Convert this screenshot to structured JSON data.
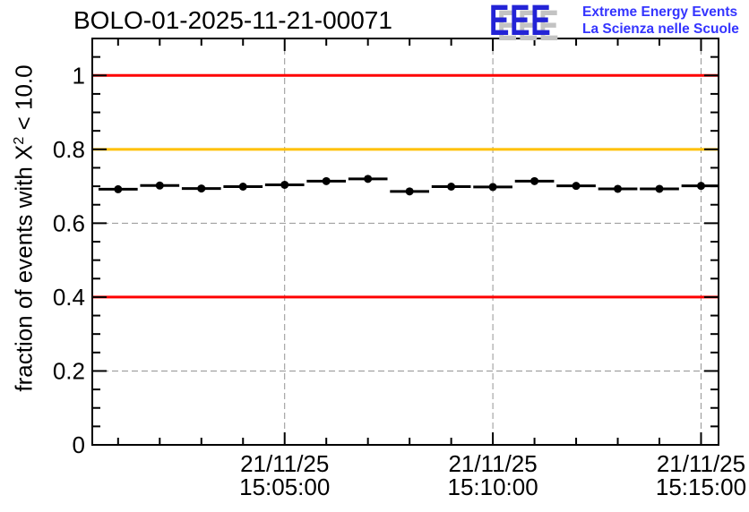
{
  "header": {
    "title": "BOLO-01-2025-11-21-00071",
    "logo": {
      "acronym": "EEE",
      "line1": "Extreme Energy Events",
      "line2": "La Scienza nelle Scuole",
      "acronym_color": "#2323d6",
      "shadow_color": "#c3c3c3",
      "text_color": "#3434ff"
    }
  },
  "chart_data": {
    "type": "scatter",
    "title": "BOLO-01-2025-11-21-00071",
    "ylabel": "fraction of events with X² < 10.0",
    "ylabel_parts": {
      "pre": "fraction of events with X",
      "sup": "2",
      "post": " < 10.0"
    },
    "xlabel": "",
    "grid": true,
    "grid_color": "#949494",
    "frame_color": "#000000",
    "ylim": [
      0,
      1.1
    ],
    "xlim_minutes": [
      0.38,
      15.42
    ],
    "y_major_ticks": [
      0,
      0.2,
      0.4,
      0.6,
      0.8,
      1.0
    ],
    "y_tick_labels": [
      "0",
      "0.2",
      "0.4",
      "0.6",
      "0.8",
      "1"
    ],
    "y_minor_step": 0.05,
    "x_major_ticks_minutes": [
      5,
      10,
      15
    ],
    "x_tick_labels": [
      {
        "date": "21/11/25",
        "time": "15:05:00"
      },
      {
        "date": "21/11/25",
        "time": "15:10:00"
      },
      {
        "date": "21/11/25",
        "time": "15:15:00"
      }
    ],
    "x_minor_step_minutes": 1,
    "reference_lines": [
      {
        "y": 1.0,
        "color": "#fe0000"
      },
      {
        "y": 0.8,
        "color": "#ffc000"
      },
      {
        "y": 0.4,
        "color": "#fe0000"
      }
    ],
    "series": [
      {
        "name": "chi2-fraction",
        "marker": "filled-circle",
        "color": "#000000",
        "bin_half_width_minutes": 0.47,
        "points": [
          {
            "time": "15:01",
            "minute": 1,
            "value": 0.692
          },
          {
            "time": "15:02",
            "minute": 2,
            "value": 0.702
          },
          {
            "time": "15:03",
            "minute": 3,
            "value": 0.694
          },
          {
            "time": "15:04",
            "minute": 4,
            "value": 0.699
          },
          {
            "time": "15:05",
            "minute": 5,
            "value": 0.704
          },
          {
            "time": "15:06",
            "minute": 6,
            "value": 0.714
          },
          {
            "time": "15:07",
            "minute": 7,
            "value": 0.72
          },
          {
            "time": "15:08",
            "minute": 8,
            "value": 0.686
          },
          {
            "time": "15:09",
            "minute": 9,
            "value": 0.699
          },
          {
            "time": "15:10",
            "minute": 10,
            "value": 0.698
          },
          {
            "time": "15:11",
            "minute": 11,
            "value": 0.714
          },
          {
            "time": "15:12",
            "minute": 12,
            "value": 0.701
          },
          {
            "time": "15:13",
            "minute": 13,
            "value": 0.693
          },
          {
            "time": "15:14",
            "minute": 14,
            "value": 0.693
          },
          {
            "time": "15:15",
            "minute": 15,
            "value": 0.701
          }
        ]
      }
    ]
  }
}
